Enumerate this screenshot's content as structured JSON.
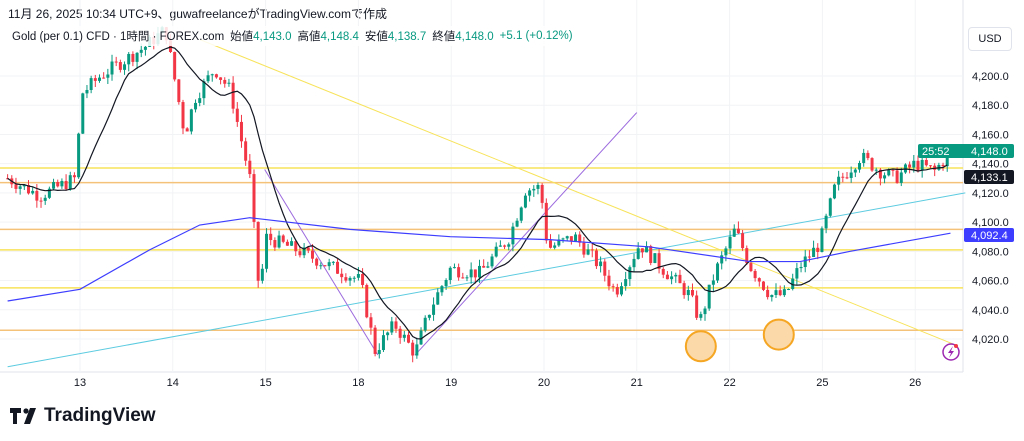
{
  "header": {
    "caption": "11月 26, 2025 10:34 UTC+9、guwafreelanceがTradingView.comで作成"
  },
  "legend": {
    "symbol": "Gold (per 0.1) CFD · 1時間 · FOREX.com",
    "open_label": "始値",
    "open": "4,143.0",
    "high_label": "高値",
    "high": "4,148.4",
    "low_label": "安値",
    "low": "4,138.7",
    "close_label": "終値",
    "close": "4,148.0",
    "change": "+5.1 (+0.12%)"
  },
  "currency": "USD",
  "brand": "TradingView",
  "colors": {
    "up": "#089981",
    "down": "#f23645",
    "ma_short": "#131722",
    "ma_long": "#3d3dff",
    "yellow": "#f7e35a",
    "orange": "#f5c27a",
    "cyan": "#5ccbe0",
    "purple": "#9c6ade",
    "circle": "#f5a623"
  },
  "chart_data": {
    "type": "candlestick",
    "x_ticks": [
      "13",
      "14",
      "15",
      "18",
      "19",
      "20",
      "21",
      "22",
      "25",
      "26"
    ],
    "y_ticks": [
      "4,200.0",
      "4,180.0",
      "4,160.0",
      "4,140.0",
      "4,120.0",
      "4,100.0",
      "4,080.0",
      "4,060.0",
      "4,040.0",
      "4,020.0"
    ],
    "y_tick_values": [
      4200,
      4180,
      4160,
      4140,
      4120,
      4100,
      4080,
      4060,
      4040,
      4020
    ],
    "ylim": [
      4000,
      4240
    ],
    "price_path": [
      [
        -0.78,
        4130
      ],
      [
        -0.43,
        4118
      ],
      [
        -0.05,
        4130
      ],
      [
        0.02,
        4188
      ],
      [
        0.22,
        4200
      ],
      [
        0.7,
        4220
      ],
      [
        0.92,
        4232
      ],
      [
        1.13,
        4160
      ],
      [
        1.24,
        4185
      ],
      [
        1.45,
        4205
      ],
      [
        1.62,
        4190
      ],
      [
        1.83,
        4130
      ],
      [
        1.94,
        4045
      ],
      [
        1.99,
        4090
      ],
      [
        2.37,
        4080
      ],
      [
        2.69,
        4070
      ],
      [
        3.02,
        4060
      ],
      [
        3.18,
        4012
      ],
      [
        3.39,
        4030
      ],
      [
        3.61,
        4010
      ],
      [
        3.77,
        4040
      ],
      [
        3.99,
        4068
      ],
      [
        4.31,
        4065
      ],
      [
        4.63,
        4090
      ],
      [
        4.8,
        4122
      ],
      [
        4.96,
        4124
      ],
      [
        5.04,
        4082
      ],
      [
        5.33,
        4090
      ],
      [
        5.6,
        4070
      ],
      [
        5.77,
        4052
      ],
      [
        6.03,
        4085
      ],
      [
        6.25,
        4070
      ],
      [
        6.57,
        4050
      ],
      [
        6.68,
        4032
      ],
      [
        6.84,
        4065
      ],
      [
        7.06,
        4095
      ],
      [
        7.22,
        4070
      ],
      [
        7.44,
        4050
      ],
      [
        7.6,
        4050
      ],
      [
        7.76,
        4070
      ],
      [
        7.97,
        4085
      ],
      [
        8.14,
        4125
      ],
      [
        8.41,
        4145
      ],
      [
        8.62,
        4135
      ],
      [
        8.78,
        4130
      ],
      [
        9.0,
        4140
      ],
      [
        9.21,
        4135
      ],
      [
        9.38,
        4148
      ]
    ],
    "ma_long": [
      [
        -0.78,
        4046
      ],
      [
        0,
        4054
      ],
      [
        0.75,
        4081
      ],
      [
        1.29,
        4098
      ],
      [
        1.83,
        4103
      ],
      [
        2.91,
        4095
      ],
      [
        3.99,
        4090
      ],
      [
        5.06,
        4088
      ],
      [
        6.14,
        4083
      ],
      [
        7.22,
        4073
      ],
      [
        7.76,
        4073
      ],
      [
        8.3,
        4080
      ],
      [
        9.38,
        4092.4
      ]
    ],
    "ma_short_period": 12,
    "horizontal_levels": [
      {
        "price": 4137,
        "color": "yellow"
      },
      {
        "price": 4127,
        "color": "orange"
      },
      {
        "price": 4095,
        "color": "orange"
      },
      {
        "price": 4081,
        "color": "yellow"
      },
      {
        "price": 4055,
        "color": "yellow"
      },
      {
        "price": 4026,
        "color": "orange"
      }
    ],
    "trendlines": [
      {
        "from": [
          1.29,
          4225
        ],
        "to": [
          9.43,
          4016
        ],
        "color": "yellow"
      },
      {
        "from": [
          -0.78,
          4001
        ],
        "to": [
          9.54,
          4120
        ],
        "color": "cyan"
      },
      {
        "from": [
          1.99,
          4136
        ],
        "to": [
          3.21,
          4009
        ],
        "color": "purple"
      },
      {
        "from": [
          3.61,
          4009
        ],
        "to": [
          6.0,
          4175
        ],
        "color": "purple"
      }
    ],
    "circles": [
      [
        6.69,
        4015
      ],
      [
        7.53,
        4023
      ]
    ],
    "labels": {
      "last_price": "4,148.0",
      "countdown": "25:52",
      "ma_short_value": "4,133.1",
      "ma_long_value": "4,092.4"
    }
  }
}
